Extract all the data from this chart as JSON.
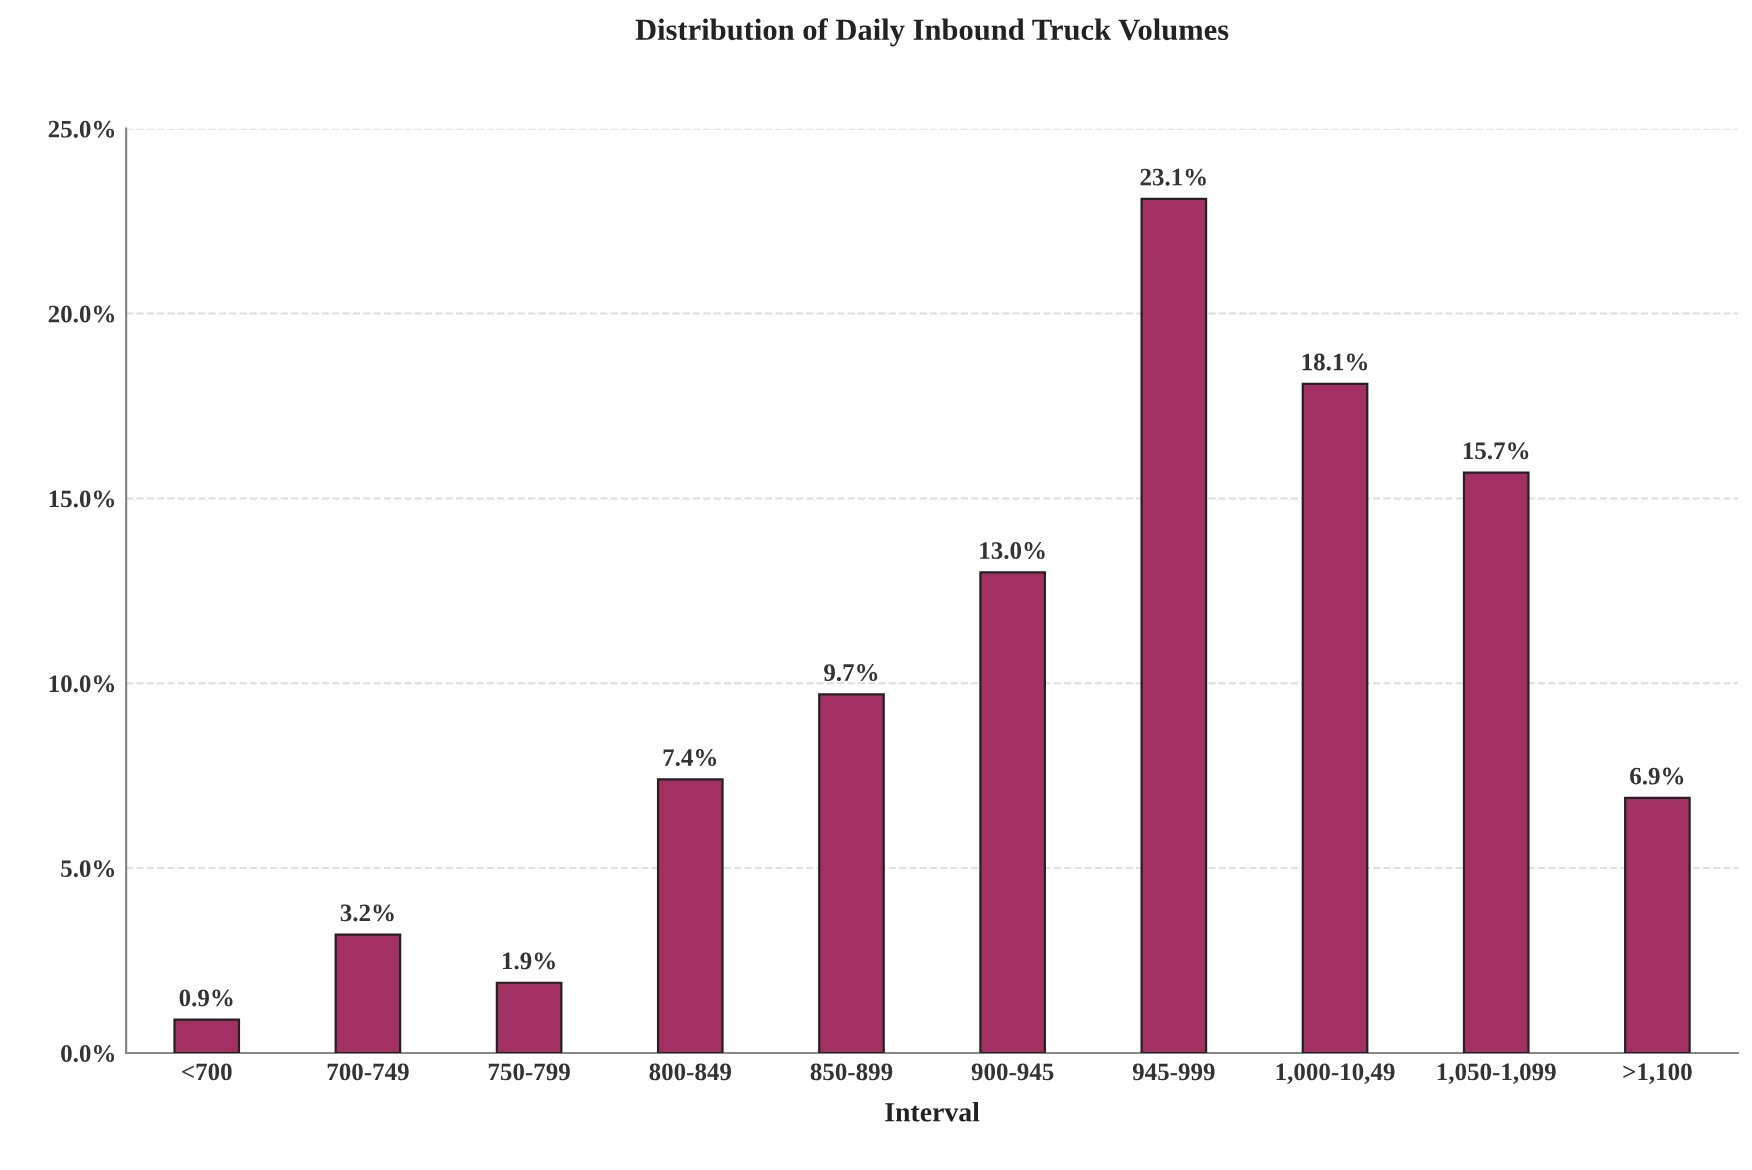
{
  "chart_data": {
    "type": "bar",
    "title": "Distribution of Daily Inbound Truck Volumes",
    "xlabel": "Interval",
    "categories": [
      "<700",
      "700-749",
      "750-799",
      "800-849",
      "850-899",
      "900-945",
      "945-999",
      "1,000-10,49",
      "1,050-1,099",
      ">1,100"
    ],
    "values": [
      0.9,
      3.2,
      1.9,
      7.4,
      9.7,
      13.0,
      23.1,
      18.1,
      15.7,
      6.9
    ],
    "value_labels": [
      "0.9%",
      "3.2%",
      "1.9%",
      "7.4%",
      "9.7%",
      "13.0%",
      "23.1%",
      "18.1%",
      "15.7%",
      "6.9%"
    ],
    "color": "#a33062",
    "ylim": [
      0,
      25
    ],
    "yticks": [
      {
        "value": 0,
        "label": "0.0%"
      },
      {
        "value": 5,
        "label": "5.0%"
      },
      {
        "value": 10,
        "label": "10.0%"
      },
      {
        "value": 15,
        "label": "15.0%"
      },
      {
        "value": 20,
        "label": "20.0%"
      },
      {
        "value": 25,
        "label": "25.0%"
      }
    ],
    "grid": "y"
  }
}
